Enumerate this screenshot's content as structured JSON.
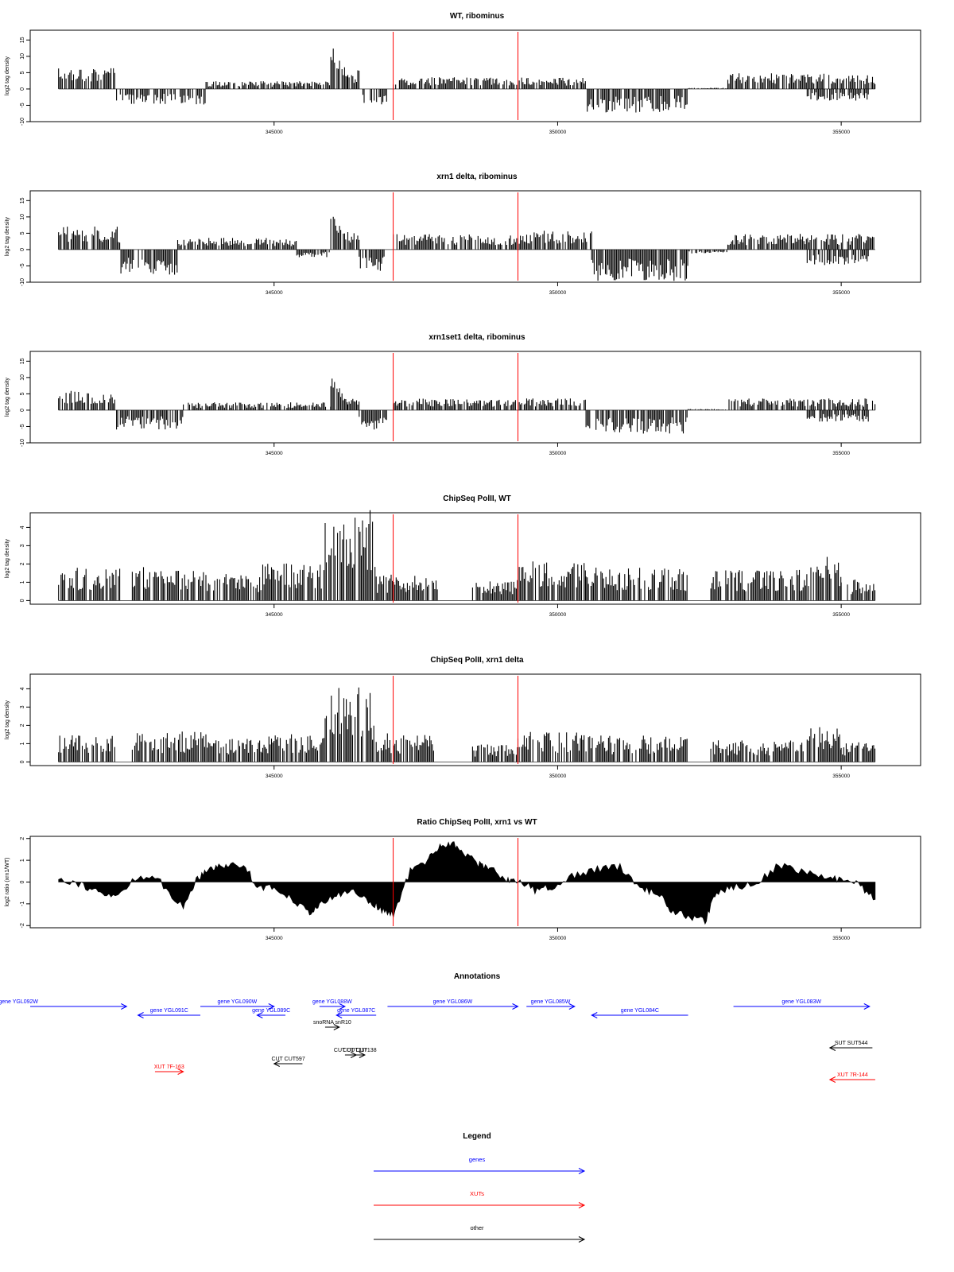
{
  "colors": {
    "gene": "#0000ff",
    "xut": "#ff0000",
    "other": "#000000",
    "marker": "#ff0000",
    "signal": "#000000"
  },
  "chart_data": [
    {
      "type": "bar",
      "title": "WT, ribominus",
      "ylabel": "log2 tag density",
      "xticks": [
        "345000",
        "350000",
        "355000"
      ],
      "yticks": [
        "-10",
        "-5",
        "0",
        "5",
        "10",
        "15"
      ],
      "xlim": [
        340700,
        356400
      ],
      "ylim": [
        -10,
        18
      ],
      "markers": [
        347100,
        349300
      ],
      "profile": [
        {
          "from": 341200,
          "to": 342200,
          "level": 6
        },
        {
          "from": 342200,
          "to": 343800,
          "level": -4
        },
        {
          "from": 343800,
          "to": 346000,
          "level": 2
        },
        {
          "from": 346000,
          "to": 346300,
          "level": 14
        },
        {
          "from": 346300,
          "to": 346500,
          "level": 5
        },
        {
          "from": 346500,
          "to": 347000,
          "level": -4
        },
        {
          "from": 347100,
          "to": 349300,
          "level": 3
        },
        {
          "from": 349300,
          "to": 350500,
          "level": 3
        },
        {
          "from": 350500,
          "to": 352300,
          "level": -6
        },
        {
          "from": 352300,
          "to": 353000,
          "level": 0.3
        },
        {
          "from": 353000,
          "to": 355600,
          "level": 4
        },
        {
          "from": 354400,
          "to": 355500,
          "level": -3
        }
      ]
    },
    {
      "type": "bar",
      "title": "xrn1 delta, ribominus",
      "ylabel": "log2 tag density",
      "xticks": [
        "345000",
        "350000",
        "355000"
      ],
      "yticks": [
        "-10",
        "-5",
        "0",
        "5",
        "10",
        "15"
      ],
      "xlim": [
        340700,
        356400
      ],
      "ylim": [
        -10,
        18
      ],
      "markers": [
        347100,
        349300
      ],
      "profile": [
        {
          "from": 341200,
          "to": 342300,
          "level": 6
        },
        {
          "from": 342300,
          "to": 343300,
          "level": -7
        },
        {
          "from": 343300,
          "to": 345400,
          "level": 3
        },
        {
          "from": 345400,
          "to": 346000,
          "level": -2
        },
        {
          "from": 346000,
          "to": 346300,
          "level": 12
        },
        {
          "from": 346300,
          "to": 346500,
          "level": 5
        },
        {
          "from": 346500,
          "to": 347000,
          "level": -6
        },
        {
          "from": 347100,
          "to": 349300,
          "level": 4
        },
        {
          "from": 349300,
          "to": 350600,
          "level": 5
        },
        {
          "from": 350600,
          "to": 352300,
          "level": -8
        },
        {
          "from": 352300,
          "to": 353000,
          "level": -1
        },
        {
          "from": 353000,
          "to": 355600,
          "level": 4
        },
        {
          "from": 354400,
          "to": 355500,
          "level": -4
        }
      ]
    },
    {
      "type": "bar",
      "title": "xrn1set1 delta, ribominus",
      "ylabel": "log2 tag density",
      "xticks": [
        "345000",
        "350000",
        "355000"
      ],
      "yticks": [
        "-10",
        "-5",
        "0",
        "5",
        "10",
        "15"
      ],
      "xlim": [
        340700,
        356400
      ],
      "ylim": [
        -10,
        18
      ],
      "markers": [
        347100,
        349300
      ],
      "profile": [
        {
          "from": 341200,
          "to": 342200,
          "level": 5
        },
        {
          "from": 342200,
          "to": 343400,
          "level": -5
        },
        {
          "from": 343400,
          "to": 346000,
          "level": 2
        },
        {
          "from": 346000,
          "to": 346300,
          "level": 10
        },
        {
          "from": 346300,
          "to": 346500,
          "level": 3
        },
        {
          "from": 346500,
          "to": 347000,
          "level": -5
        },
        {
          "from": 347100,
          "to": 349300,
          "level": 3
        },
        {
          "from": 349300,
          "to": 350500,
          "level": 3
        },
        {
          "from": 350500,
          "to": 352300,
          "level": -6
        },
        {
          "from": 352300,
          "to": 353000,
          "level": 0.3
        },
        {
          "from": 353000,
          "to": 355600,
          "level": 3
        },
        {
          "from": 354400,
          "to": 355500,
          "level": -3
        }
      ]
    },
    {
      "type": "bar",
      "title": "ChipSeq PolII, WT",
      "ylabel": "log2 tag density",
      "xticks": [
        "345000",
        "350000",
        "355000"
      ],
      "yticks": [
        "0",
        "1",
        "2",
        "3",
        "4"
      ],
      "xlim": [
        340700,
        356400
      ],
      "ylim": [
        -0.2,
        4.8
      ],
      "markers": [
        347100,
        349300
      ],
      "profile": [
        {
          "from": 341200,
          "to": 342300,
          "level": 1.5
        },
        {
          "from": 342500,
          "to": 343800,
          "level": 1.6
        },
        {
          "from": 343800,
          "to": 344800,
          "level": 1.3
        },
        {
          "from": 344800,
          "to": 345900,
          "level": 1.7
        },
        {
          "from": 345900,
          "to": 346800,
          "level": 4.2
        },
        {
          "from": 346800,
          "to": 347900,
          "level": 1.2
        },
        {
          "from": 348500,
          "to": 349300,
          "level": 1.0
        },
        {
          "from": 349300,
          "to": 350500,
          "level": 1.8
        },
        {
          "from": 350500,
          "to": 352300,
          "level": 1.5
        },
        {
          "from": 352700,
          "to": 354400,
          "level": 1.4
        },
        {
          "from": 354400,
          "to": 355000,
          "level": 2.0
        },
        {
          "from": 355000,
          "to": 355600,
          "level": 1.0
        }
      ]
    },
    {
      "type": "bar",
      "title": "ChipSeq PolII, xrn1 delta",
      "ylabel": "log2 tag density",
      "xticks": [
        "345000",
        "350000",
        "355000"
      ],
      "yticks": [
        "0",
        "1",
        "2",
        "3",
        "4"
      ],
      "xlim": [
        340700,
        356400
      ],
      "ylim": [
        -0.2,
        4.8
      ],
      "markers": [
        347100,
        349300
      ],
      "profile": [
        {
          "from": 341200,
          "to": 342200,
          "level": 1.3
        },
        {
          "from": 342500,
          "to": 343800,
          "level": 1.4
        },
        {
          "from": 343800,
          "to": 344800,
          "level": 1.1
        },
        {
          "from": 344800,
          "to": 345900,
          "level": 1.3
        },
        {
          "from": 345900,
          "to": 346800,
          "level": 3.4
        },
        {
          "from": 346800,
          "to": 347900,
          "level": 1.3
        },
        {
          "from": 348500,
          "to": 349300,
          "level": 0.8
        },
        {
          "from": 349300,
          "to": 350500,
          "level": 1.4
        },
        {
          "from": 350500,
          "to": 352300,
          "level": 1.2
        },
        {
          "from": 352700,
          "to": 354400,
          "level": 1.0
        },
        {
          "from": 354400,
          "to": 355000,
          "level": 1.6
        },
        {
          "from": 355000,
          "to": 355600,
          "level": 1.0
        }
      ]
    },
    {
      "type": "area",
      "title": "Ratio ChipSeq PolII, xrn1 vs WT",
      "ylabel": "log2 ratio (xrn1/WT)",
      "xticks": [
        "345000",
        "350000",
        "355000"
      ],
      "yticks": [
        "-2",
        "-1",
        "0",
        "1",
        "2"
      ],
      "xlim": [
        340700,
        356400
      ],
      "ylim": [
        -2.1,
        2.1
      ],
      "markers": [
        347100,
        349300
      ],
      "x": [
        341200,
        341600,
        341900,
        342200,
        342600,
        343000,
        343400,
        343600,
        343800,
        344000,
        344200,
        344500,
        344700,
        345000,
        345300,
        345600,
        345800,
        346100,
        346400,
        346700,
        346900,
        347100,
        347400,
        347700,
        347900,
        348100,
        348300,
        348600,
        348800,
        349100,
        349300,
        349600,
        349900,
        350300,
        350700,
        351100,
        351500,
        351800,
        352000,
        352300,
        352600,
        352800,
        353100,
        353500,
        353900,
        354300,
        354700,
        355000,
        355300,
        355600
      ],
      "y": [
        0.2,
        -0.1,
        -0.5,
        -0.7,
        0.3,
        0.0,
        -1.2,
        0.0,
        0.6,
        0.7,
        0.8,
        0.7,
        -0.2,
        -0.3,
        -0.7,
        -1.4,
        -1.1,
        -0.6,
        -0.4,
        -0.9,
        -1.3,
        -1.5,
        0.5,
        1.0,
        1.6,
        1.8,
        1.5,
        0.8,
        0.7,
        0.1,
        0.1,
        -0.4,
        -0.2,
        0.3,
        0.6,
        0.7,
        -0.3,
        -0.6,
        -1.3,
        -1.6,
        -1.8,
        -0.5,
        -0.2,
        -0.1,
        0.8,
        0.5,
        0.2,
        0.1,
        -0.1,
        -0.8
      ]
    }
  ],
  "annotations": {
    "title": "Annotations",
    "xlim": [
      340700,
      356400
    ],
    "features": [
      {
        "label": "gene YGL092W",
        "kind": "gene",
        "start": 340700,
        "end": 342400,
        "strand": "+",
        "row": 0,
        "clip": true
      },
      {
        "label": "gene YGL091C",
        "kind": "gene",
        "start": 342600,
        "end": 343700,
        "strand": "-",
        "row": 1
      },
      {
        "label": "gene YGL090W",
        "kind": "gene",
        "start": 343700,
        "end": 345000,
        "strand": "+",
        "row": 0
      },
      {
        "label": "gene YGL089C",
        "kind": "gene",
        "start": 344700,
        "end": 345200,
        "strand": "-",
        "row": 1
      },
      {
        "label": "gene YGL088W",
        "kind": "gene",
        "start": 345800,
        "end": 346250,
        "strand": "+",
        "row": 0
      },
      {
        "label": "gene YGL087C",
        "kind": "gene",
        "start": 346100,
        "end": 346800,
        "strand": "-",
        "row": 1
      },
      {
        "label": "snoRNA snR10",
        "kind": "other",
        "start": 345900,
        "end": 346150,
        "strand": "+",
        "row": 2
      },
      {
        "label": "gene YGL086W",
        "kind": "gene",
        "start": 347000,
        "end": 349300,
        "strand": "+",
        "row": 0
      },
      {
        "label": "gene YGL085W",
        "kind": "gene",
        "start": 349450,
        "end": 350300,
        "strand": "+",
        "row": 0
      },
      {
        "label": "gene YGL084C",
        "kind": "gene",
        "start": 350600,
        "end": 352300,
        "strand": "-",
        "row": 1
      },
      {
        "label": "gene YGL083W",
        "kind": "gene",
        "start": 353100,
        "end": 355500,
        "strand": "+",
        "row": 0
      },
      {
        "label": "CUT CUT597",
        "kind": "other",
        "start": 345000,
        "end": 345500,
        "strand": "-",
        "row": 5
      },
      {
        "label": "CUT CUT138",
        "kind": "other",
        "start": 346420,
        "end": 346600,
        "strand": "+",
        "row": 4
      },
      {
        "label": "CUT CUT137",
        "kind": "other",
        "start": 346250,
        "end": 346450,
        "strand": "+",
        "row": 4
      },
      {
        "label": "SUT SUT544",
        "kind": "other",
        "start": 354800,
        "end": 355550,
        "strand": "-",
        "row": 3
      },
      {
        "label": "XUT 7F-163",
        "kind": "xut",
        "start": 342900,
        "end": 343400,
        "strand": "+",
        "row": 6
      },
      {
        "label": "XUT 7R-144",
        "kind": "xut",
        "start": 354800,
        "end": 355600,
        "strand": "-",
        "row": 7
      }
    ]
  },
  "legend": {
    "title": "Legend",
    "items": [
      {
        "label": "genes",
        "kind": "gene"
      },
      {
        "label": "XUTs",
        "kind": "xut"
      },
      {
        "label": "other",
        "kind": "other"
      }
    ]
  }
}
